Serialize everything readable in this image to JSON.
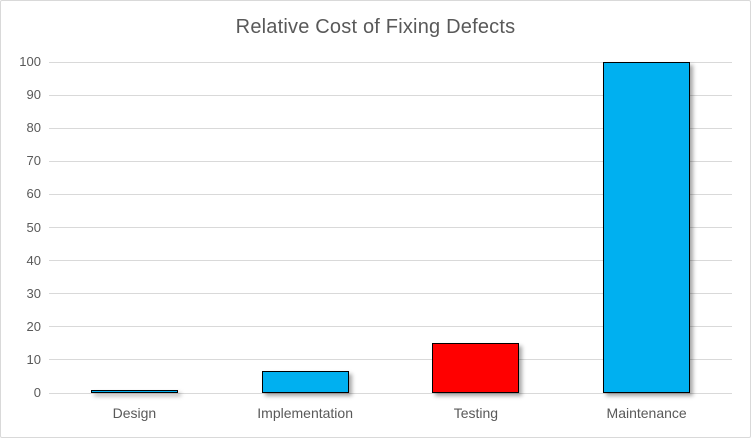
{
  "chart_data": {
    "type": "bar",
    "title": "Relative Cost of Fixing Defects",
    "categories": [
      "Design",
      "Implementation",
      "Testing",
      "Maintenance"
    ],
    "values": [
      1,
      6.5,
      15,
      100
    ],
    "bar_colors": [
      "#00B0F0",
      "#00B0F0",
      "#FF0000",
      "#00B0F0"
    ],
    "xlabel": "",
    "ylabel": "",
    "ylim": [
      0,
      100
    ],
    "yticks": [
      0,
      10,
      20,
      30,
      40,
      50,
      60,
      70,
      80,
      90,
      100
    ],
    "grid": true,
    "legend": false
  },
  "colors": {
    "bar_blue": "#00B0F0",
    "bar_red": "#FF0000",
    "bar_border": "#000000",
    "gridline": "#d9d9d9",
    "text": "#595959",
    "chart_border": "#d9d9d9",
    "background": "#ffffff"
  }
}
